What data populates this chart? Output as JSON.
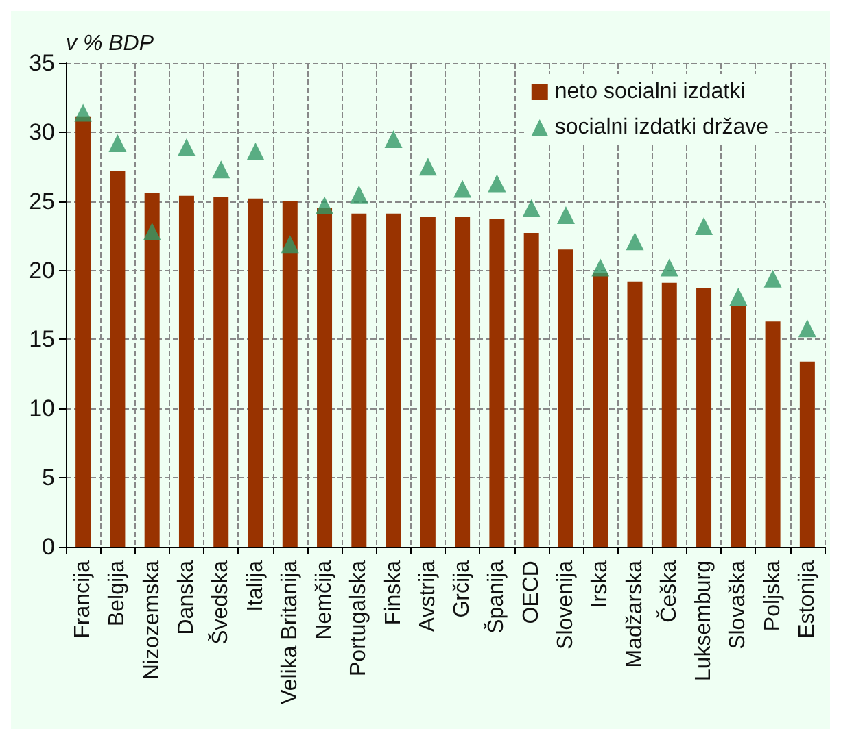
{
  "chart_data": {
    "type": "bar",
    "ylabel": "v % BDP",
    "categories": [
      "Francija",
      "Belgija",
      "Nizozemska",
      "Danska",
      "Švedska",
      "Italija",
      "Velika Britanija",
      "Nemčija",
      "Portugalska",
      "Finska",
      "Avstrija",
      "Grčija",
      "Španija",
      "OECD",
      "Slovenija",
      "Irska",
      "Madžarska",
      "Češka",
      "Luksemburg",
      "Slovaška",
      "Poljska",
      "Estonija"
    ],
    "series": [
      {
        "name": "neto socialni izdatki",
        "color": "#993300",
        "values": [
          31.1,
          27.2,
          25.6,
          25.4,
          25.3,
          25.2,
          25.0,
          24.5,
          24.1,
          24.1,
          23.9,
          23.9,
          23.7,
          22.7,
          21.5,
          19.8,
          19.2,
          19.1,
          18.7,
          17.4,
          16.3,
          13.4
        ]
      },
      {
        "name": "socialni izdatki države",
        "type": "scatter",
        "marker": "triangle",
        "color": "#339966",
        "values": [
          31.4,
          29.2,
          22.8,
          28.9,
          27.3,
          28.6,
          21.9,
          24.7,
          25.5,
          29.5,
          27.5,
          25.9,
          26.3,
          24.5,
          24.0,
          20.2,
          22.1,
          20.2,
          23.2,
          18.1,
          19.4,
          15.8
        ]
      }
    ],
    "ylim": [
      0,
      35
    ],
    "yticks": [
      0,
      5,
      10,
      15,
      20,
      25,
      30,
      35
    ],
    "grid": true,
    "legend": "top right"
  }
}
